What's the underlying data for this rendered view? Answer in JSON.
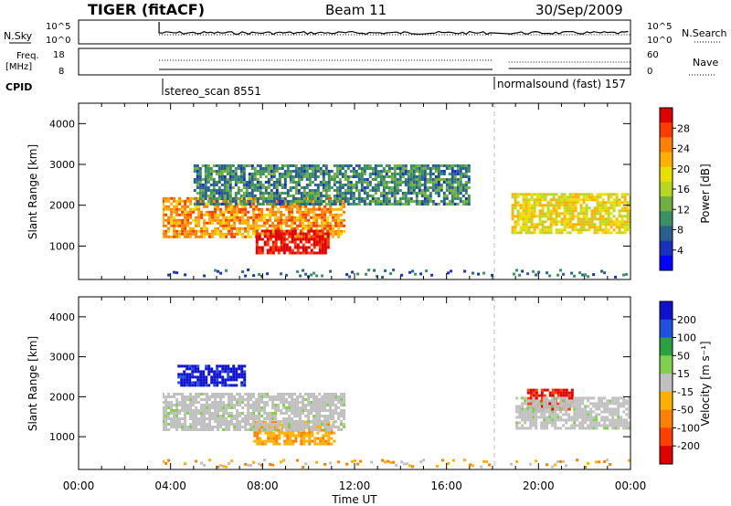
{
  "header": {
    "radar": "TIGER (fitACF)",
    "beam": "Beam 11",
    "date": "30/Sep/2009"
  },
  "summary": {
    "nsky_label": "N.Sky",
    "nsearch_label": "N.Search",
    "exp_ticks_left": [
      "10^5",
      "10^0"
    ],
    "exp_ticks_right": [
      "10^5",
      "10^0"
    ],
    "freq_label_1": "Freq.",
    "freq_label_2": "[MHz]",
    "freq_ticks": [
      "18",
      "8"
    ],
    "nave_label": "Nave",
    "nave_ticks": [
      "60",
      "0"
    ],
    "cpid_label": "CPID",
    "cpid_segments": [
      {
        "name": "stereo_scan 8551",
        "start_hour": 3.5
      },
      {
        "name": "normalsound (fast) 157",
        "start_hour": 18.7
      }
    ]
  },
  "panels": [
    {
      "id": "power",
      "ylabel": "Slant Range [km]",
      "yticks": [
        "4000",
        "3000",
        "2000",
        "1000"
      ],
      "cbar_label": "Power [dB]",
      "cbar_ticks": [
        "28",
        "24",
        "20",
        "16",
        "12",
        "8",
        "4"
      ],
      "cbar_colors": [
        "#e00000",
        "#ff3b00",
        "#ff8000",
        "#ffb000",
        "#e8e000",
        "#b8d820",
        "#70b040",
        "#3a9060",
        "#2a6090",
        "#1a30c0",
        "#0000ff"
      ]
    },
    {
      "id": "velocity",
      "ylabel": "Slant Range [km]",
      "yticks": [
        "4000",
        "3000",
        "2000",
        "1000"
      ],
      "cbar_label": "Velocity [m s⁻¹]",
      "cbar_ticks": [
        "200",
        "100",
        "50",
        "15",
        "-15",
        "-50",
        "-100",
        "-200"
      ],
      "cbar_colors": [
        "#1010d0",
        "#2050e0",
        "#2aa040",
        "#80d050",
        "#c0c0c0",
        "#ffb000",
        "#ff8000",
        "#ff4000",
        "#e00000"
      ]
    }
  ],
  "xaxis": {
    "label": "Time UT",
    "ticks": [
      "00:00",
      "04:00",
      "08:00",
      "12:00",
      "16:00",
      "20:00",
      "00:00"
    ]
  },
  "chart_data": {
    "type": "heatmap",
    "x_range_hours": [
      0,
      24
    ],
    "y_range_km": [
      180,
      4500
    ],
    "data_gap_hours": [
      18.0,
      18.7
    ],
    "power_features": [
      {
        "label": "main backscatter band",
        "t_start": 3.5,
        "t_end": 11.5,
        "range_km": [
          1200,
          2200
        ],
        "power_db": 22
      },
      {
        "label": "strong echo region",
        "t_start": 7.7,
        "t_end": 10.8,
        "range_km": [
          800,
          1400
        ],
        "power_db": 28
      },
      {
        "label": "upper layer",
        "t_start": 5,
        "t_end": 17,
        "range_km": [
          2000,
          3000
        ],
        "power_db": 10
      },
      {
        "label": "evening band",
        "t_start": 18.7,
        "t_end": 24,
        "range_km": [
          1300,
          2300
        ],
        "power_db": 18
      }
    ],
    "velocity_features": [
      {
        "label": "positive velocity patch",
        "t_start": 4.3,
        "t_end": 7.2,
        "range_km": [
          2300,
          2800
        ],
        "velocity_ms": 200
      },
      {
        "label": "negative velocity patch",
        "t_start": 7.6,
        "t_end": 11.1,
        "range_km": [
          800,
          1400
        ],
        "velocity_ms": -50
      },
      {
        "label": "evening negative velocity",
        "t_start": 19.5,
        "t_end": 21.5,
        "range_km": [
          1700,
          2200
        ],
        "velocity_ms": -150
      }
    ]
  }
}
